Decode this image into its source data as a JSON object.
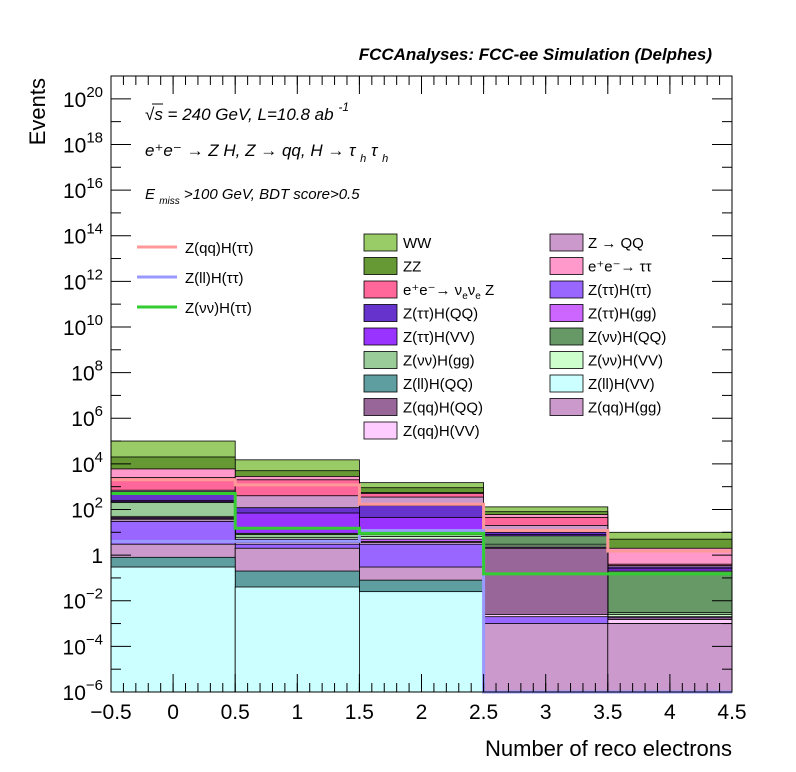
{
  "header": {
    "title": "FCCAnalyses: FCC-ee Simulation (Delphes)"
  },
  "annotations": {
    "energy": "√s = 240 GeV, L=10.8 ab",
    "energy_exp": "-1",
    "process": "e⁺e⁻ → Z H, Z → qq, H → τ",
    "process_sub1": "h",
    "process_tau2": "τ",
    "process_sub2": "h",
    "cut_E": "E",
    "cut_sub": "miss",
    "cut_rest": ">100 GeV, BDT score>0.5"
  },
  "chart_data": {
    "type": "stacked-histogram",
    "xlabel": "Number of reco electrons",
    "ylabel": "Events",
    "xlim": [
      -0.5,
      4.5
    ],
    "ylim": [
      1e-06,
      1e+21
    ],
    "log_y": true,
    "bin_edges": [
      -0.5,
      0.5,
      1.5,
      2.5,
      3.5,
      4.5
    ],
    "x_ticks": [
      "−0.5",
      "0",
      "0.5",
      "1",
      "1.5",
      "2",
      "2.5",
      "3",
      "3.5",
      "4",
      "4.5"
    ],
    "y_ticks": [
      {
        "base": "10",
        "exp": "−6"
      },
      {
        "base": "10",
        "exp": "−4"
      },
      {
        "base": "10",
        "exp": "−2"
      },
      {
        "base": "1",
        "exp": ""
      },
      {
        "base": "10",
        "exp": "2"
      },
      {
        "base": "10",
        "exp": "4"
      },
      {
        "base": "10",
        "exp": "6"
      },
      {
        "base": "10",
        "exp": "8"
      },
      {
        "base": "10",
        "exp": "10"
      },
      {
        "base": "10",
        "exp": "12"
      },
      {
        "base": "10",
        "exp": "14"
      },
      {
        "base": "10",
        "exp": "16"
      },
      {
        "base": "10",
        "exp": "18"
      },
      {
        "base": "10",
        "exp": "20"
      }
    ],
    "stack_cumulative_bottom_to_top": [
      {
        "name": "Z(ll)H(VV)",
        "color": "#ccffff",
        "values": [
          0.3,
          0.04,
          0.025,
          0,
          0
        ]
      },
      {
        "name": "Z(ll)H(QQ)",
        "color": "#5f9ea0",
        "values": [
          0.8,
          0.2,
          0.08,
          0,
          0
        ]
      },
      {
        "name": "Z(qq)H(gg)",
        "color": "#cc99cc",
        "values": [
          3.0,
          2.0,
          0.3,
          0.001,
          0.001
        ]
      },
      {
        "name": "Z(ττ)H(ττ)",
        "color": "#9966ff",
        "values": [
          30,
          3.0,
          3.0,
          0.002,
          0.001
        ]
      },
      {
        "name": "Z(qq)H(VV)",
        "color": "#ffccff",
        "values": [
          35,
          3.5,
          3.5,
          0.0025,
          0.0015
        ]
      },
      {
        "name": "Z(qq)H(QQ)",
        "color": "#996699",
        "values": [
          40,
          4.5,
          4.0,
          2.0,
          0.0018
        ]
      },
      {
        "name": "Z(ττ)H(gg)",
        "color": "#cc66ff",
        "values": [
          45,
          5.0,
          5.0,
          2.2,
          0.002
        ]
      },
      {
        "name": "Z(νν)H(VV)",
        "color": "#ccffcc",
        "values": [
          50,
          6.0,
          6.5,
          2.5,
          0.0025
        ]
      },
      {
        "name": "Z(νν)H(gg)",
        "color": "#99cc99",
        "values": [
          200,
          8.0,
          8.0,
          3.0,
          0.003
        ]
      },
      {
        "name": "Z(νν)H(QQ)",
        "color": "#669966",
        "values": [
          220,
          9.0,
          12.0,
          7.0,
          0.2
        ]
      },
      {
        "name": "Z(ττ)H(VV)",
        "color": "#9933ff",
        "values": [
          250,
          70,
          45,
          8.0,
          0.25
        ]
      },
      {
        "name": "Z(ττ)H(QQ)",
        "color": "#6633cc",
        "values": [
          600,
          120,
          150,
          10,
          0.3
        ]
      },
      {
        "name": "Z → QQ",
        "color": "#cc99cc",
        "values": [
          700,
          400,
          350,
          20,
          0.35
        ]
      },
      {
        "name": "e⁺e⁻→ ν_eν_e Z",
        "color": "#ff6699",
        "values": [
          2500,
          2000,
          500,
          45,
          0.4
        ]
      },
      {
        "name": "e⁺e⁻→ ττ",
        "color": "#ff99cc",
        "values": [
          6000,
          2800,
          550,
          60,
          2.0
        ]
      },
      {
        "name": "ZZ",
        "color": "#669933",
        "values": [
          20000,
          5000,
          900,
          80,
          5.0
        ]
      },
      {
        "name": "WW",
        "color": "#99cc66",
        "values": [
          100000,
          15000,
          1500,
          130,
          10.0
        ]
      }
    ],
    "overlay_lines": [
      {
        "name": "Z(qq)H(ττ)",
        "color": "#ff9999",
        "values": [
          2000,
          1200,
          170,
          12,
          1.5
        ]
      },
      {
        "name": "Z(ll)H(ττ)",
        "color": "#9999ff",
        "values": [
          4,
          4,
          12,
          1e-06,
          1e-06
        ]
      },
      {
        "name": "Z(νν)H(ττ)",
        "color": "#33cc33",
        "values": [
          500,
          15,
          9,
          0.15,
          0.15
        ]
      }
    ],
    "legend": {
      "placement": "center-left and center",
      "lines": [
        "Z(qq)H(ττ)",
        "Z(ll)H(ττ)",
        "Z(νν)H(ττ)"
      ],
      "col1": [
        "WW",
        "ZZ",
        "e⁺e⁻→ ν_eν_e Z",
        "Z(ττ)H(QQ)",
        "Z(ττ)H(VV)",
        "Z(νν)H(gg)",
        "Z(ll)H(QQ)",
        "Z(qq)H(QQ)",
        "Z(qq)H(VV)"
      ],
      "col2": [
        "Z → QQ",
        "e⁺e⁻→ ττ",
        "Z(ττ)H(ττ)",
        "Z(ττ)H(gg)",
        "Z(νν)H(QQ)",
        "Z(νν)H(VV)",
        "Z(ll)H(VV)",
        "Z(qq)H(gg)"
      ]
    }
  }
}
